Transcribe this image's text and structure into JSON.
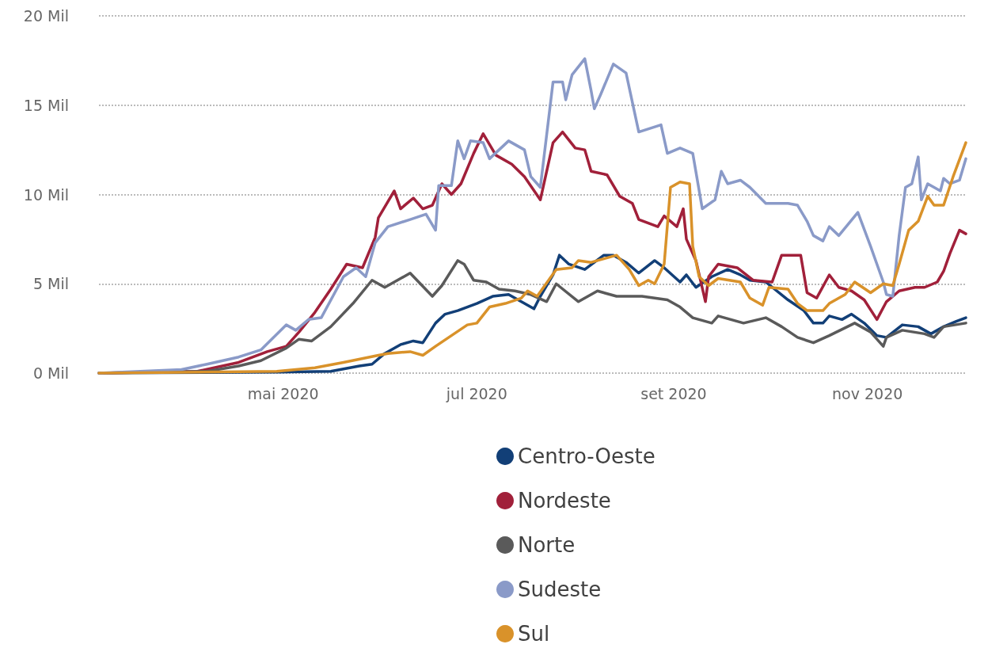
{
  "chart_data": {
    "type": "line",
    "xlim": [
      "2020-03-04",
      "2020-12-02"
    ],
    "xticks": [
      {
        "value": "2020-05-01",
        "label": "mai 2020"
      },
      {
        "value": "2020-07-01",
        "label": "jul 2020"
      },
      {
        "value": "2020-09-01",
        "label": "set 2020"
      },
      {
        "value": "2020-11-01",
        "label": "nov 2020"
      }
    ],
    "ylim": [
      0,
      20
    ],
    "yticks": [
      {
        "value": 0,
        "label": "0 Mil"
      },
      {
        "value": 5,
        "label": "5 Mil"
      },
      {
        "value": 10,
        "label": "10 Mil"
      },
      {
        "value": 15,
        "label": "15 Mil"
      },
      {
        "value": 20,
        "label": "20 Mil"
      }
    ],
    "grid": "y",
    "legend": "bottom",
    "marker": "none",
    "line_style": "solid",
    "series": [
      {
        "name": "Centro-Oeste",
        "color": "#123f77",
        "x": [
          "2020-03-04",
          "2020-04-29",
          "2020-05-16",
          "2020-05-25",
          "2020-05-29",
          "2020-06-02",
          "2020-06-07",
          "2020-06-11",
          "2020-06-14",
          "2020-06-18",
          "2020-06-21",
          "2020-06-25",
          "2020-07-01",
          "2020-07-06",
          "2020-07-11",
          "2020-07-15",
          "2020-07-19",
          "2020-07-21",
          "2020-07-25",
          "2020-07-27",
          "2020-07-30",
          "2020-08-04",
          "2020-08-10",
          "2020-08-13",
          "2020-08-17",
          "2020-08-21",
          "2020-08-26",
          "2020-08-29",
          "2020-09-03",
          "2020-09-05",
          "2020-09-08",
          "2020-09-13",
          "2020-09-18",
          "2020-09-22",
          "2020-09-25",
          "2020-09-30",
          "2020-10-07",
          "2020-10-12",
          "2020-10-15",
          "2020-10-18",
          "2020-10-20",
          "2020-10-24",
          "2020-10-27",
          "2020-10-31",
          "2020-11-04",
          "2020-11-07",
          "2020-11-12",
          "2020-11-17",
          "2020-11-21",
          "2020-11-25",
          "2020-11-29",
          "2020-12-02"
        ],
        "values": [
          0,
          0.05,
          0.1,
          0.4,
          0.5,
          1.1,
          1.6,
          1.8,
          1.7,
          2.8,
          3.3,
          3.5,
          3.9,
          4.3,
          4.4,
          4.0,
          3.6,
          4.3,
          5.5,
          6.6,
          6.1,
          5.8,
          6.6,
          6.6,
          6.2,
          5.6,
          6.3,
          5.9,
          5.1,
          5.5,
          4.8,
          5.4,
          5.8,
          5.5,
          5.2,
          5.1,
          4.1,
          3.5,
          2.8,
          2.8,
          3.2,
          3.0,
          3.3,
          2.8,
          2.1,
          2.0,
          2.7,
          2.6,
          2.2,
          2.6,
          2.9,
          3.1
        ]
      },
      {
        "name": "Nordeste",
        "color": "#a1203a",
        "x": [
          "2020-03-04",
          "2020-04-04",
          "2020-04-17",
          "2020-04-26",
          "2020-05-02",
          "2020-05-06",
          "2020-05-11",
          "2020-05-16",
          "2020-05-21",
          "2020-05-26",
          "2020-05-30",
          "2020-05-31",
          "2020-06-05",
          "2020-06-07",
          "2020-06-11",
          "2020-06-14",
          "2020-06-17",
          "2020-06-20",
          "2020-06-23",
          "2020-06-26",
          "2020-06-30",
          "2020-07-03",
          "2020-07-07",
          "2020-07-12",
          "2020-07-16",
          "2020-07-21",
          "2020-07-25",
          "2020-07-28",
          "2020-08-01",
          "2020-08-04",
          "2020-08-06",
          "2020-08-11",
          "2020-08-15",
          "2020-08-19",
          "2020-08-21",
          "2020-08-27",
          "2020-08-29",
          "2020-09-02",
          "2020-09-04",
          "2020-09-05",
          "2020-09-08",
          "2020-09-11",
          "2020-09-12",
          "2020-09-15",
          "2020-09-21",
          "2020-09-26",
          "2020-10-02",
          "2020-10-05",
          "2020-10-11",
          "2020-10-13",
          "2020-10-16",
          "2020-10-20",
          "2020-10-23",
          "2020-10-27",
          "2020-10-31",
          "2020-11-04",
          "2020-11-07",
          "2020-11-11",
          "2020-11-16",
          "2020-11-19",
          "2020-11-23",
          "2020-11-25",
          "2020-11-27",
          "2020-11-30",
          "2020-12-02"
        ],
        "values": [
          0,
          0.1,
          0.6,
          1.2,
          1.5,
          2.3,
          3.4,
          4.7,
          6.1,
          5.9,
          7.6,
          8.7,
          10.2,
          9.2,
          9.8,
          9.2,
          9.4,
          10.6,
          10.0,
          10.6,
          12.3,
          13.4,
          12.2,
          11.7,
          11.0,
          9.7,
          12.9,
          13.5,
          12.6,
          12.5,
          11.3,
          11.1,
          9.9,
          9.5,
          8.6,
          8.2,
          8.8,
          8.2,
          9.2,
          7.5,
          6.3,
          4.0,
          5.4,
          6.1,
          5.9,
          5.2,
          5.1,
          6.6,
          6.6,
          4.5,
          4.2,
          5.5,
          4.8,
          4.6,
          4.1,
          3.0,
          4.0,
          4.6,
          4.8,
          4.8,
          5.1,
          5.7,
          6.7,
          8.0,
          7.8
        ]
      },
      {
        "name": "Norte",
        "color": "#5a5a5a",
        "x": [
          "2020-03-04",
          "2020-04-07",
          "2020-04-17",
          "2020-04-24",
          "2020-05-02",
          "2020-05-06",
          "2020-05-10",
          "2020-05-16",
          "2020-05-23",
          "2020-05-29",
          "2020-06-02",
          "2020-06-05",
          "2020-06-10",
          "2020-06-17",
          "2020-06-20",
          "2020-06-25",
          "2020-06-27",
          "2020-06-30",
          "2020-07-04",
          "2020-07-08",
          "2020-07-13",
          "2020-07-18",
          "2020-07-23",
          "2020-07-26",
          "2020-08-02",
          "2020-08-08",
          "2020-08-14",
          "2020-08-22",
          "2020-08-30",
          "2020-09-03",
          "2020-09-07",
          "2020-09-13",
          "2020-09-15",
          "2020-09-23",
          "2020-09-30",
          "2020-10-05",
          "2020-10-10",
          "2020-10-15",
          "2020-10-20",
          "2020-10-28",
          "2020-11-02",
          "2020-11-06",
          "2020-11-07",
          "2020-11-12",
          "2020-11-19",
          "2020-11-22",
          "2020-11-25",
          "2020-12-02"
        ],
        "values": [
          0,
          0.1,
          0.4,
          0.7,
          1.4,
          1.9,
          1.8,
          2.6,
          3.9,
          5.2,
          4.8,
          5.1,
          5.6,
          4.3,
          4.9,
          6.3,
          6.1,
          5.2,
          5.1,
          4.7,
          4.6,
          4.4,
          4.0,
          5.0,
          4.0,
          4.6,
          4.3,
          4.3,
          4.1,
          3.7,
          3.1,
          2.8,
          3.2,
          2.8,
          3.1,
          2.6,
          2.0,
          1.7,
          2.1,
          2.8,
          2.3,
          1.5,
          2.0,
          2.4,
          2.2,
          2.0,
          2.6,
          2.8
        ]
      },
      {
        "name": "Sudeste",
        "color": "#8a9ac8",
        "x": [
          "2020-03-04",
          "2020-03-30",
          "2020-04-07",
          "2020-04-17",
          "2020-04-24",
          "2020-05-02",
          "2020-05-05",
          "2020-05-09",
          "2020-05-13",
          "2020-05-20",
          "2020-05-24",
          "2020-05-27",
          "2020-05-30",
          "2020-06-03",
          "2020-06-10",
          "2020-06-15",
          "2020-06-18",
          "2020-06-19",
          "2020-06-23",
          "2020-06-25",
          "2020-06-27",
          "2020-06-29",
          "2020-07-03",
          "2020-07-05",
          "2020-07-11",
          "2020-07-16",
          "2020-07-18",
          "2020-07-21",
          "2020-07-25",
          "2020-07-28",
          "2020-07-29",
          "2020-07-31",
          "2020-08-04",
          "2020-08-06",
          "2020-08-07",
          "2020-08-09",
          "2020-08-13",
          "2020-08-17",
          "2020-08-21",
          "2020-08-28",
          "2020-08-30",
          "2020-09-03",
          "2020-09-07",
          "2020-09-10",
          "2020-09-14",
          "2020-09-16",
          "2020-09-18",
          "2020-09-22",
          "2020-09-25",
          "2020-09-30",
          "2020-10-07",
          "2020-10-10",
          "2020-10-13",
          "2020-10-15",
          "2020-10-18",
          "2020-10-20",
          "2020-10-23",
          "2020-10-29",
          "2020-11-02",
          "2020-11-06",
          "2020-11-07",
          "2020-11-09",
          "2020-11-11",
          "2020-11-13",
          "2020-11-15",
          "2020-11-17",
          "2020-11-18",
          "2020-11-20",
          "2020-11-24",
          "2020-11-25",
          "2020-11-27",
          "2020-11-30",
          "2020-12-02"
        ],
        "values": [
          0,
          0.2,
          0.5,
          0.9,
          1.3,
          2.7,
          2.4,
          3.0,
          3.1,
          5.4,
          5.9,
          5.4,
          7.3,
          8.2,
          8.6,
          8.9,
          8.0,
          10.5,
          10.5,
          13.0,
          12.0,
          13.0,
          12.9,
          12.0,
          13.0,
          12.5,
          11.0,
          10.4,
          16.3,
          16.3,
          15.3,
          16.7,
          17.6,
          15.8,
          14.8,
          15.6,
          17.3,
          16.8,
          13.5,
          13.9,
          12.3,
          12.6,
          12.3,
          9.2,
          9.7,
          11.3,
          10.6,
          10.8,
          10.4,
          9.5,
          9.5,
          9.4,
          8.5,
          7.7,
          7.4,
          8.2,
          7.7,
          9.0,
          7.1,
          5.1,
          4.4,
          4.3,
          7.7,
          10.4,
          10.6,
          12.1,
          9.7,
          10.6,
          10.2,
          10.9,
          10.6,
          10.8,
          12.0
        ]
      },
      {
        "name": "Sul",
        "color": "#d9922a",
        "x": [
          "2020-03-04",
          "2020-04-29",
          "2020-05-11",
          "2020-05-20",
          "2020-05-31",
          "2020-06-03",
          "2020-06-10",
          "2020-06-14",
          "2020-06-18",
          "2020-06-23",
          "2020-06-28",
          "2020-07-01",
          "2020-07-05",
          "2020-07-10",
          "2020-07-15",
          "2020-07-17",
          "2020-07-20",
          "2020-07-26",
          "2020-07-31",
          "2020-08-02",
          "2020-08-06",
          "2020-08-10",
          "2020-08-14",
          "2020-08-18",
          "2020-08-21",
          "2020-08-24",
          "2020-08-26",
          "2020-08-29",
          "2020-08-31",
          "2020-09-03",
          "2020-09-06",
          "2020-09-07",
          "2020-09-09",
          "2020-09-12",
          "2020-09-15",
          "2020-09-22",
          "2020-09-25",
          "2020-09-29",
          "2020-10-01",
          "2020-10-07",
          "2020-10-10",
          "2020-10-13",
          "2020-10-18",
          "2020-10-20",
          "2020-10-25",
          "2020-10-28",
          "2020-11-02",
          "2020-11-06",
          "2020-11-09",
          "2020-11-11",
          "2020-11-14",
          "2020-11-17",
          "2020-11-20",
          "2020-11-22",
          "2020-11-25",
          "2020-11-28",
          "2020-12-02"
        ],
        "values": [
          0,
          0.1,
          0.3,
          0.6,
          1.0,
          1.1,
          1.2,
          1.0,
          1.5,
          2.1,
          2.7,
          2.8,
          3.7,
          3.9,
          4.2,
          4.6,
          4.3,
          5.8,
          5.9,
          6.3,
          6.2,
          6.4,
          6.6,
          5.8,
          4.9,
          5.2,
          5.0,
          6.1,
          10.4,
          10.7,
          10.6,
          7.1,
          5.4,
          4.9,
          5.3,
          5.1,
          4.2,
          3.8,
          4.8,
          4.7,
          3.9,
          3.5,
          3.5,
          3.9,
          4.4,
          5.1,
          4.5,
          5.0,
          4.9,
          6.1,
          8.0,
          8.5,
          9.9,
          9.4,
          9.4,
          11.0,
          12.9
        ]
      }
    ]
  }
}
